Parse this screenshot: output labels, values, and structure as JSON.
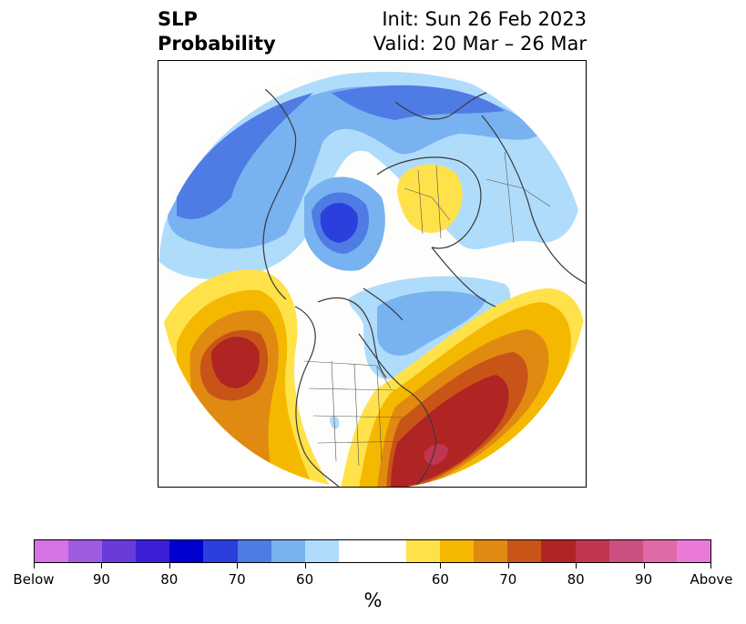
{
  "title": {
    "left_line1": "SLP",
    "left_line2": "Probability",
    "right_line1": "Init: Sun 26 Feb 2023",
    "right_line2": "Valid: 20 Mar – 26 Mar"
  },
  "map": {
    "projection": "north-polar-stereographic",
    "coastlines": true,
    "borders": true
  },
  "colorbar": {
    "units": "%",
    "colors": [
      "#d672e6",
      "#a05ce0",
      "#6a3bd9",
      "#3a1fd6",
      "#0000d0",
      "#2a3fdc",
      "#4f7be4",
      "#78b2f0",
      "#b0dcfb",
      "#ffffff",
      "#ffe24a",
      "#f5b800",
      "#e08a12",
      "#c85418",
      "#b02424",
      "#c03650",
      "#cc4f82",
      "#e06aa8",
      "#ea7ad8"
    ],
    "tick_labels": [
      "Below",
      "90",
      "80",
      "70",
      "60",
      "60",
      "70",
      "80",
      "90",
      "Above"
    ]
  }
}
